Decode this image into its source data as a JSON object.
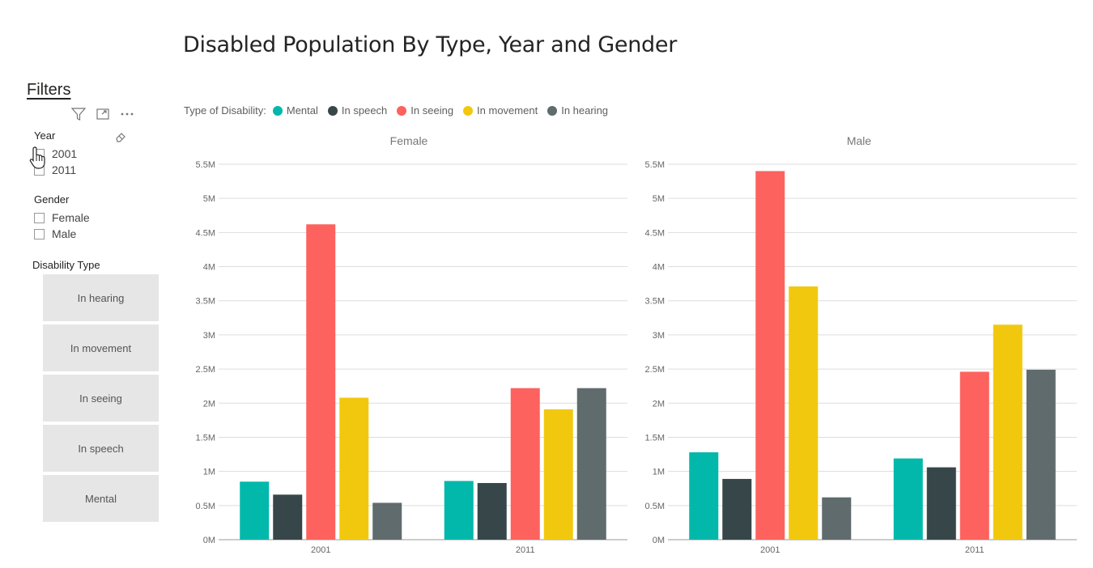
{
  "title": "Disabled Population By Type, Year and Gender",
  "filters": {
    "heading": "Filters",
    "year": {
      "label": "Year",
      "options": [
        "2001",
        "2011"
      ]
    },
    "gender": {
      "label": "Gender",
      "options": [
        "Female",
        "Male"
      ]
    },
    "disability_type": {
      "label": "Disability Type",
      "tiles": [
        "In hearing",
        "In movement",
        "In seeing",
        "In speech",
        "Mental"
      ]
    }
  },
  "legend": {
    "title": "Type of Disability:",
    "items": [
      {
        "name": "Mental",
        "color": "#01B8AA"
      },
      {
        "name": "In speech",
        "color": "#374649"
      },
      {
        "name": "In seeing",
        "color": "#FD625E"
      },
      {
        "name": "In movement",
        "color": "#F2C80F"
      },
      {
        "name": "In hearing",
        "color": "#5F6B6D"
      }
    ]
  },
  "chart_data": [
    {
      "type": "bar",
      "title": "Female",
      "categories": [
        "2001",
        "2011"
      ],
      "ylim": [
        0,
        5500000
      ],
      "yticks": [
        "0M",
        "0.5M",
        "1M",
        "1.5M",
        "2M",
        "2.5M",
        "3M",
        "3.5M",
        "4M",
        "4.5M",
        "5M",
        "5.5M"
      ],
      "grid": true,
      "series": [
        {
          "name": "Mental",
          "color": "#01B8AA",
          "values": [
            850000,
            860000
          ]
        },
        {
          "name": "In speech",
          "color": "#374649",
          "values": [
            660000,
            830000
          ]
        },
        {
          "name": "In seeing",
          "color": "#FD625E",
          "values": [
            4620000,
            2220000
          ]
        },
        {
          "name": "In movement",
          "color": "#F2C80F",
          "values": [
            2080000,
            1910000
          ]
        },
        {
          "name": "In hearing",
          "color": "#5F6B6D",
          "values": [
            540000,
            2220000
          ]
        }
      ]
    },
    {
      "type": "bar",
      "title": "Male",
      "categories": [
        "2001",
        "2011"
      ],
      "ylim": [
        0,
        5500000
      ],
      "yticks": [
        "0M",
        "0.5M",
        "1M",
        "1.5M",
        "2M",
        "2.5M",
        "3M",
        "3.5M",
        "4M",
        "4.5M",
        "5M",
        "5.5M"
      ],
      "grid": true,
      "series": [
        {
          "name": "Mental",
          "color": "#01B8AA",
          "values": [
            1280000,
            1190000
          ]
        },
        {
          "name": "In speech",
          "color": "#374649",
          "values": [
            890000,
            1060000
          ]
        },
        {
          "name": "In seeing",
          "color": "#FD625E",
          "values": [
            5400000,
            2460000
          ]
        },
        {
          "name": "In movement",
          "color": "#F2C80F",
          "values": [
            3710000,
            3150000
          ]
        },
        {
          "name": "In hearing",
          "color": "#5F6B6D",
          "values": [
            620000,
            2490000
          ]
        }
      ]
    }
  ]
}
